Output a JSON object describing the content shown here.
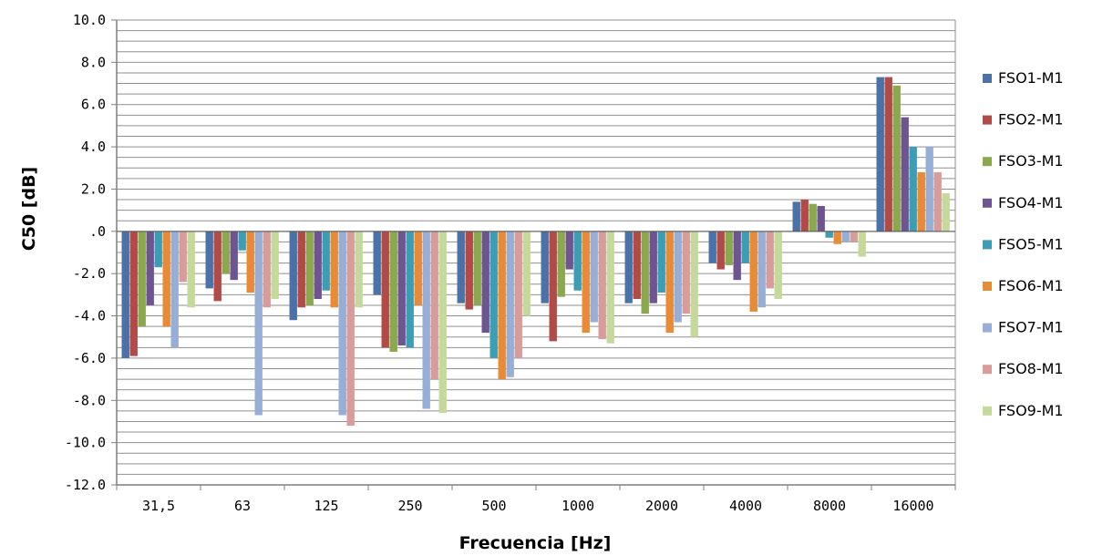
{
  "chart_data": {
    "type": "bar",
    "xlabel": "Frecuencia [Hz]",
    "ylabel": "C50 [dB]",
    "ylim": [
      -12,
      10
    ],
    "ytick_step": 2,
    "yticks": [
      "10.0",
      "8.0",
      "6.0",
      "4.0",
      "2.0",
      ".0",
      "-2.0",
      "-4.0",
      "-6.0",
      "-8.0",
      "-10.0",
      "-12.0"
    ],
    "minor_grid_step": 0.5,
    "grid": true,
    "legend_position": "right",
    "categories": [
      "31,5",
      "63",
      "125",
      "250",
      "500",
      "1000",
      "2000",
      "4000",
      "8000",
      "16000"
    ],
    "series": [
      {
        "name": "FSO1-M1",
        "color": "#4a72a8",
        "values": [
          -6.0,
          -2.7,
          -4.2,
          -3.0,
          -3.4,
          -3.4,
          -3.4,
          -1.5,
          1.4,
          7.3
        ]
      },
      {
        "name": "FSO2-M1",
        "color": "#b24a48",
        "values": [
          -5.9,
          -3.3,
          -3.6,
          -5.5,
          -3.7,
          -5.2,
          -3.2,
          -1.8,
          1.5,
          7.3
        ]
      },
      {
        "name": "FSO3-M1",
        "color": "#8aa84e",
        "values": [
          -4.5,
          -2.0,
          -3.5,
          -5.7,
          -3.5,
          -3.1,
          -3.9,
          -1.6,
          1.3,
          6.9
        ]
      },
      {
        "name": "FSO4-M1",
        "color": "#6e5592",
        "values": [
          -3.5,
          -2.3,
          -3.2,
          -5.4,
          -4.8,
          -1.8,
          -3.4,
          -2.3,
          1.2,
          5.4
        ]
      },
      {
        "name": "FSO5-M1",
        "color": "#3d9db5",
        "values": [
          -1.7,
          -0.9,
          -2.8,
          -5.5,
          -6.0,
          -2.8,
          -2.9,
          -1.5,
          -0.3,
          4.0
        ]
      },
      {
        "name": "FSO6-M1",
        "color": "#e88b34",
        "values": [
          -4.5,
          -2.9,
          -3.6,
          -3.5,
          -7.0,
          -4.8,
          -4.8,
          -3.8,
          -0.6,
          2.8
        ]
      },
      {
        "name": "FSO7-M1",
        "color": "#97afd7",
        "values": [
          -5.5,
          -8.7,
          -8.7,
          -8.4,
          -6.9,
          -4.3,
          -4.3,
          -3.6,
          -0.5,
          4.0
        ]
      },
      {
        "name": "FSO8-M1",
        "color": "#d89c9a",
        "values": [
          -2.4,
          -3.6,
          -9.2,
          -7.0,
          -6.0,
          -5.1,
          -3.9,
          -2.7,
          -0.5,
          2.8
        ]
      },
      {
        "name": "FSO9-M1",
        "color": "#c5d99d",
        "values": [
          -3.6,
          -3.2,
          -3.6,
          -8.6,
          -4.0,
          -5.3,
          -5.0,
          -3.2,
          -1.2,
          1.8
        ]
      }
    ]
  }
}
